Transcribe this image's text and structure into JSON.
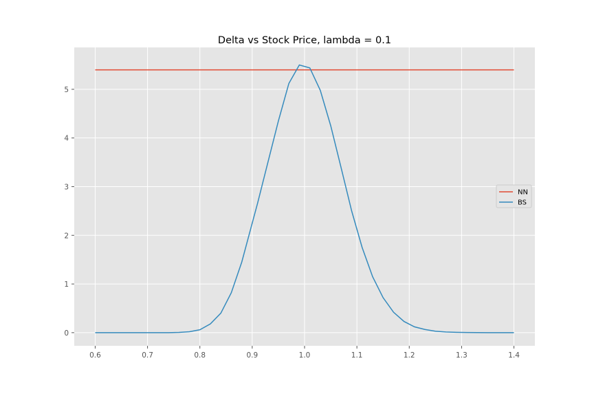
{
  "chart_data": {
    "type": "line",
    "title": "Delta vs Stock Price, lambda = 0.1",
    "xlabel": "",
    "ylabel": "",
    "xlim": [
      0.56,
      1.44
    ],
    "ylim": [
      -0.27,
      5.86
    ],
    "xticks": [
      0.6,
      0.7,
      0.8,
      0.9,
      1.0,
      1.1,
      1.2,
      1.3,
      1.4
    ],
    "xtick_labels": [
      "0.6",
      "0.7",
      "0.8",
      "0.9",
      "1.0",
      "1.1",
      "1.2",
      "1.3",
      "1.4"
    ],
    "yticks": [
      0,
      1,
      2,
      3,
      4,
      5
    ],
    "ytick_labels": [
      "0",
      "1",
      "2",
      "3",
      "4",
      "5"
    ],
    "grid": true,
    "style": "ggplot",
    "legend": {
      "position": "center-right",
      "entries": [
        "NN",
        "BS"
      ]
    },
    "series": [
      {
        "name": "NN",
        "color": "#E24A33",
        "x": [
          0.6,
          1.4
        ],
        "y": [
          5.4,
          5.4
        ]
      },
      {
        "name": "BS",
        "color": "#348ABD",
        "x": [
          0.6,
          0.62,
          0.64,
          0.66,
          0.68,
          0.7,
          0.72,
          0.74,
          0.76,
          0.78,
          0.8,
          0.82,
          0.84,
          0.86,
          0.88,
          0.9,
          0.91,
          0.93,
          0.95,
          0.97,
          0.99,
          1.01,
          1.03,
          1.05,
          1.07,
          1.09,
          1.11,
          1.13,
          1.15,
          1.17,
          1.19,
          1.21,
          1.23,
          1.25,
          1.27,
          1.29,
          1.31,
          1.33,
          1.35,
          1.37,
          1.4
        ],
        "y": [
          0,
          0,
          0,
          0,
          0,
          0,
          0,
          0,
          0.005,
          0.02,
          0.06,
          0.18,
          0.4,
          0.82,
          1.45,
          2.25,
          2.65,
          3.5,
          4.35,
          5.12,
          5.5,
          5.44,
          4.98,
          4.25,
          3.38,
          2.5,
          1.75,
          1.15,
          0.72,
          0.42,
          0.23,
          0.12,
          0.065,
          0.03,
          0.015,
          0.007,
          0.003,
          0.001,
          0,
          0,
          0
        ]
      }
    ]
  }
}
